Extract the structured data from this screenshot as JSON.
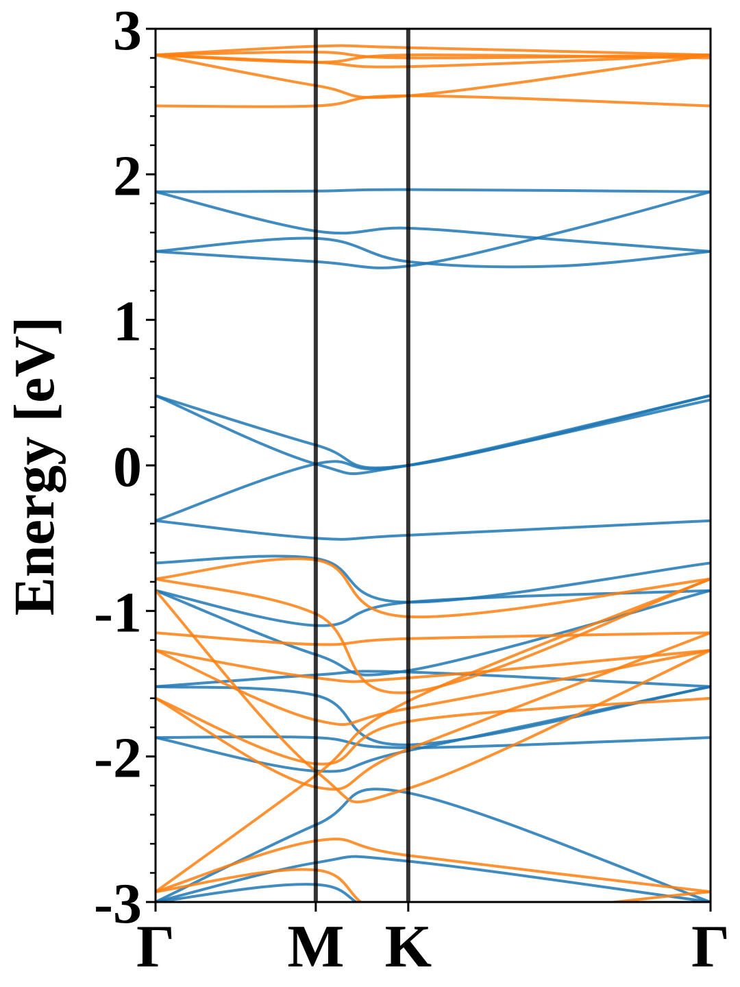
{
  "chart_data": {
    "type": "line",
    "title": "",
    "xlabel": "",
    "ylabel": "Energy [eV]",
    "ylim": [
      -3,
      3
    ],
    "yticks": [
      -3,
      -2,
      -1,
      0,
      1,
      2,
      3
    ],
    "ytick_labels": [
      "-3",
      "-2",
      "-1",
      "0",
      "1",
      "2",
      "3"
    ],
    "minor_ytick_step": 0.2,
    "kpath_labels": [
      "Γ",
      "M",
      "K",
      "Γ"
    ],
    "kpath_positions": [
      0,
      0.5774,
      0.9107,
      2.0
    ],
    "grid": false,
    "colors": {
      "series_a": "#1f77b4",
      "series_b": "#ff7f0e",
      "vline": "#000000"
    },
    "series": [
      {
        "color_key": "series_a",
        "bands": [
          [
            1.88,
            1.885,
            1.895,
            1.88
          ],
          [
            1.88,
            1.61,
            1.63,
            1.55,
            1.47
          ],
          [
            1.47,
            1.56,
            1.4,
            1.37,
            1.47
          ],
          [
            1.47,
            1.4,
            1.37,
            1.6,
            1.88
          ],
          [
            0.48,
            0.14,
            0.0,
            0.48
          ],
          [
            0.48,
            0.01,
            0.0,
            0.45
          ],
          [
            -0.38,
            0.01,
            0.0,
            0.48
          ],
          [
            -0.38,
            -0.5,
            -0.48,
            -0.38
          ],
          [
            -0.67,
            -0.64,
            -0.94,
            -0.67
          ],
          [
            -0.86,
            -1.1,
            -0.94,
            -0.86
          ],
          [
            -0.86,
            -1.3,
            -1.41,
            -0.86
          ],
          [
            -1.52,
            -1.44,
            -1.42,
            -1.52
          ],
          [
            -1.52,
            -1.58,
            -1.92,
            -1.52
          ],
          [
            -1.87,
            -1.87,
            -1.94,
            -1.87
          ],
          [
            -1.87,
            -2.1,
            -1.96,
            -1.52
          ],
          [
            -3.0,
            -2.47,
            -2.25,
            -3.0
          ],
          [
            -3.0,
            -2.73,
            -2.72,
            -3.0
          ],
          [
            -3.0,
            -2.88,
            -3.1,
            -3.1
          ]
        ]
      },
      {
        "color_key": "series_b",
        "bands": [
          [
            2.82,
            2.88,
            2.87,
            2.82
          ],
          [
            2.82,
            2.84,
            2.8,
            2.82
          ],
          [
            2.82,
            2.77,
            2.74,
            2.82
          ],
          [
            2.82,
            2.77,
            2.82,
            2.8
          ],
          [
            2.82,
            2.61,
            2.54,
            2.82
          ],
          [
            2.47,
            2.47,
            2.54,
            2.47
          ],
          [
            -0.78,
            -0.65,
            -1.04,
            -0.78
          ],
          [
            -0.78,
            -1.02,
            -1.56,
            -0.78
          ],
          [
            -1.15,
            -1.23,
            -1.19,
            -1.15
          ],
          [
            -1.27,
            -1.46,
            -1.46,
            -1.27
          ],
          [
            -1.27,
            -1.75,
            -1.67,
            -1.27
          ],
          [
            -1.6,
            -2.05,
            -1.76,
            -1.6
          ],
          [
            -0.86,
            -2.1,
            -2.22,
            -1.27
          ],
          [
            -1.6,
            -2.21,
            -1.95,
            -1.15
          ],
          [
            -2.93,
            -2.13,
            -1.62,
            -0.78
          ],
          [
            -2.93,
            -2.58,
            -2.68,
            -2.93
          ],
          [
            -2.93,
            -2.78,
            -3.1,
            -2.93
          ]
        ]
      }
    ]
  }
}
